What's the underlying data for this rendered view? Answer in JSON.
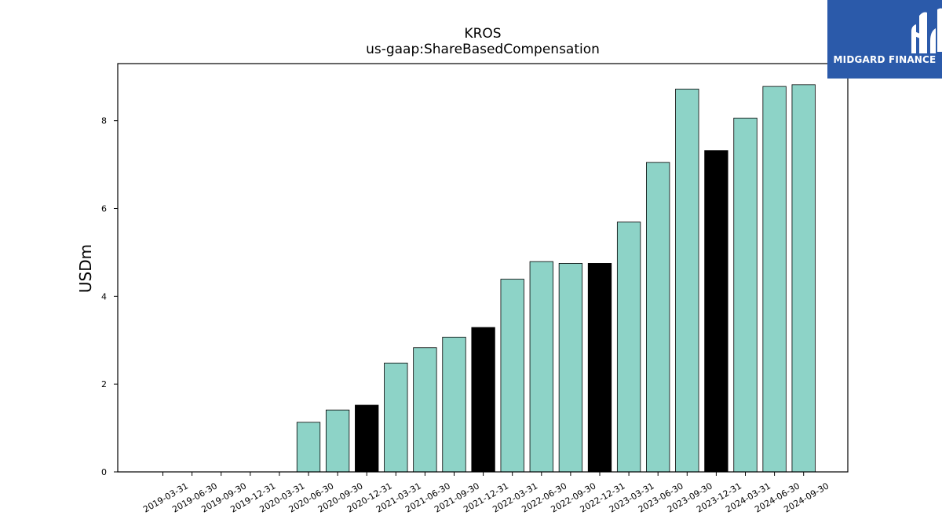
{
  "chart_data": {
    "type": "bar",
    "title": "KROS",
    "subtitle": "us-gaap:ShareBasedCompensation",
    "ylabel": "USDm",
    "xlabel": "",
    "ylim": [
      0,
      9.3
    ],
    "yticks": [
      0,
      2,
      4,
      6,
      8
    ],
    "categories": [
      "2019-03-31",
      "2019-06-30",
      "2019-09-30",
      "2019-12-31",
      "2020-03-31",
      "2020-06-30",
      "2020-09-30",
      "2020-12-31",
      "2021-03-31",
      "2021-06-30",
      "2021-09-30",
      "2021-12-31",
      "2022-03-31",
      "2022-06-30",
      "2022-09-30",
      "2022-12-31",
      "2023-03-31",
      "2023-06-30",
      "2023-09-30",
      "2023-12-31",
      "2024-03-31",
      "2024-06-30",
      "2024-09-30"
    ],
    "values": [
      0,
      0,
      0,
      0,
      0,
      1.13,
      1.41,
      1.52,
      2.48,
      2.83,
      3.07,
      3.29,
      4.39,
      4.79,
      4.75,
      4.75,
      5.69,
      7.05,
      8.72,
      7.32,
      8.06,
      8.78,
      8.82
    ],
    "highlight": [
      false,
      false,
      false,
      false,
      false,
      false,
      false,
      true,
      false,
      false,
      false,
      true,
      false,
      false,
      false,
      true,
      false,
      false,
      false,
      true,
      false,
      false,
      false
    ],
    "colors": {
      "normal": "#8dd3c7",
      "highlight": "#000000",
      "edge": "#000000"
    },
    "grid": false,
    "legend": "none"
  },
  "logo": {
    "text": "MIDGARD FINANCE",
    "icon": "midgard-m-logo-icon",
    "bg": "#2b5aaa"
  }
}
